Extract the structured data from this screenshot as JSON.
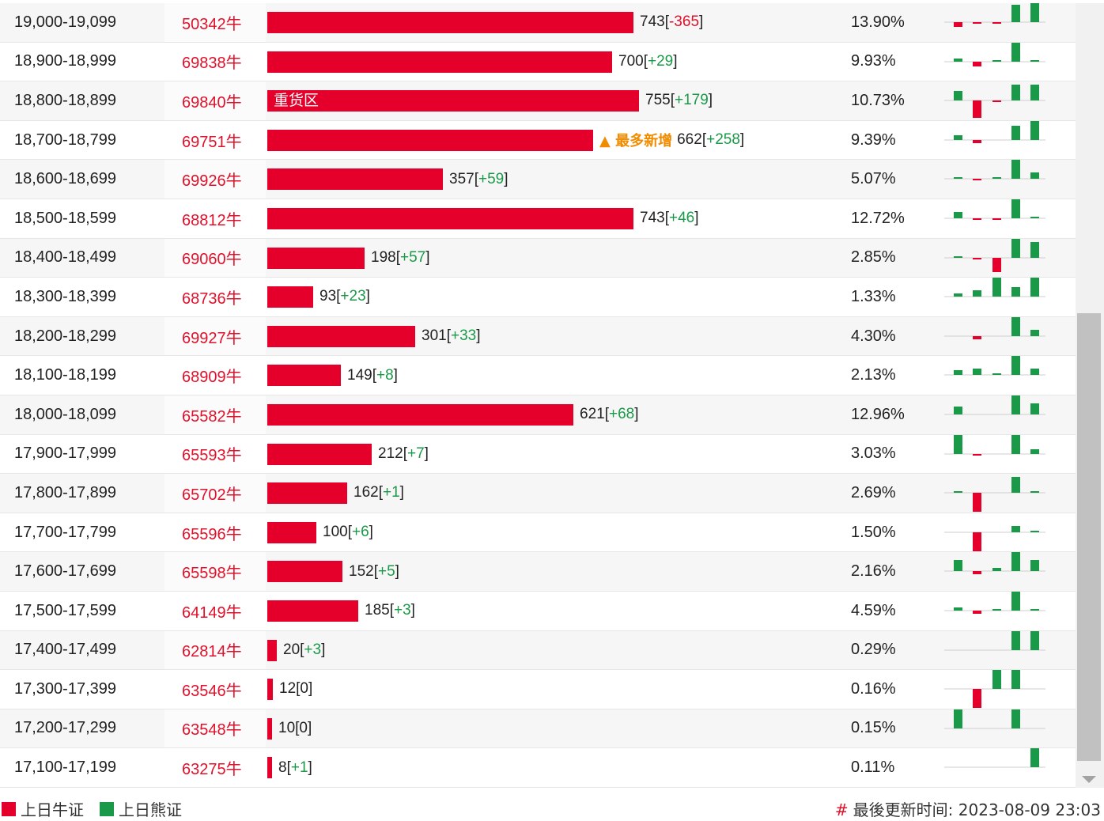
{
  "colors": {
    "bull": "#e4002b",
    "bear": "#1a9a48",
    "highlight": "#f08c00"
  },
  "max_bar_value": 755,
  "rows": [
    {
      "range": "19,000-19,099",
      "code": "50342牛",
      "value": 743,
      "change": "-365",
      "pct": "13.90%",
      "spark": [
        -3,
        -1,
        -1,
        11,
        12
      ]
    },
    {
      "range": "18,900-18,999",
      "code": "69838牛",
      "value": 700,
      "change": "+29",
      "pct": "9.93%",
      "spark": [
        2,
        -3,
        1,
        12,
        1
      ]
    },
    {
      "range": "18,800-18,899",
      "code": "69840牛",
      "value": 755,
      "change": "+179",
      "pct": "10.73%",
      "spark": [
        6,
        -11,
        -1,
        10,
        10
      ],
      "inlabel": "重货区"
    },
    {
      "range": "18,700-18,799",
      "code": "69751牛",
      "value": 662,
      "change": "+258",
      "pct": "9.39%",
      "spark": [
        3,
        -2,
        0,
        9,
        12
      ],
      "tag": "▲ 最多新增"
    },
    {
      "range": "18,600-18,699",
      "code": "69926牛",
      "value": 357,
      "change": "+59",
      "pct": "5.07%",
      "spark": [
        1,
        -1,
        1,
        12,
        4
      ]
    },
    {
      "range": "18,500-18,599",
      "code": "68812牛",
      "value": 743,
      "change": "+46",
      "pct": "12.72%",
      "spark": [
        4,
        -1,
        -1,
        12,
        1
      ]
    },
    {
      "range": "18,400-18,499",
      "code": "69060牛",
      "value": 198,
      "change": "+57",
      "pct": "2.85%",
      "spark": [
        1,
        -1,
        -9,
        12,
        10
      ]
    },
    {
      "range": "18,300-18,399",
      "code": "68736牛",
      "value": 93,
      "change": "+23",
      "pct": "1.33%",
      "spark": [
        2,
        4,
        12,
        6,
        12
      ]
    },
    {
      "range": "18,200-18,299",
      "code": "69927牛",
      "value": 301,
      "change": "+33",
      "pct": "4.30%",
      "spark": [
        0,
        -2,
        0,
        12,
        4
      ]
    },
    {
      "range": "18,100-18,199",
      "code": "68909牛",
      "value": 149,
      "change": "+8",
      "pct": "2.13%",
      "spark": [
        3,
        4,
        1,
        12,
        4
      ]
    },
    {
      "range": "18,000-18,099",
      "code": "65582牛",
      "value": 621,
      "change": "+68",
      "pct": "12.96%",
      "spark": [
        5,
        0,
        0,
        12,
        7
      ]
    },
    {
      "range": "17,900-17,999",
      "code": "65593牛",
      "value": 212,
      "change": "+7",
      "pct": "3.03%",
      "spark": [
        12,
        -1,
        0,
        12,
        3
      ]
    },
    {
      "range": "17,800-17,899",
      "code": "65702牛",
      "value": 162,
      "change": "+1",
      "pct": "2.69%",
      "spark": [
        1,
        -12,
        0,
        10,
        1
      ]
    },
    {
      "range": "17,700-17,799",
      "code": "65596牛",
      "value": 100,
      "change": "+6",
      "pct": "1.50%",
      "spark": [
        0,
        -12,
        0,
        4,
        1
      ]
    },
    {
      "range": "17,600-17,699",
      "code": "65598牛",
      "value": 152,
      "change": "+5",
      "pct": "2.16%",
      "spark": [
        7,
        -2,
        2,
        12,
        7
      ]
    },
    {
      "range": "17,500-17,599",
      "code": "64149牛",
      "value": 185,
      "change": "+3",
      "pct": "4.59%",
      "spark": [
        2,
        -2,
        1,
        12,
        1
      ]
    },
    {
      "range": "17,400-17,499",
      "code": "62814牛",
      "value": 20,
      "change": "+3",
      "pct": "0.29%",
      "spark": [
        0,
        0,
        0,
        12,
        12
      ]
    },
    {
      "range": "17,300-17,399",
      "code": "63546牛",
      "value": 12,
      "change": "0",
      "pct": "0.16%",
      "spark": [
        0,
        -12,
        12,
        12,
        0
      ]
    },
    {
      "range": "17,200-17,299",
      "code": "63548牛",
      "value": 10,
      "change": "0",
      "pct": "0.15%",
      "spark": [
        12,
        0,
        0,
        12,
        0
      ]
    },
    {
      "range": "17,100-17,199",
      "code": "63275牛",
      "value": 8,
      "change": "+1",
      "pct": "0.11%",
      "spark": [
        0,
        0,
        0,
        0,
        12
      ]
    }
  ],
  "legend": {
    "bull_label": "上日牛证",
    "bear_label": "上日熊证"
  },
  "footer": {
    "hash": "#",
    "updated": "最後更新时间: 2023-08-09 23:03"
  }
}
